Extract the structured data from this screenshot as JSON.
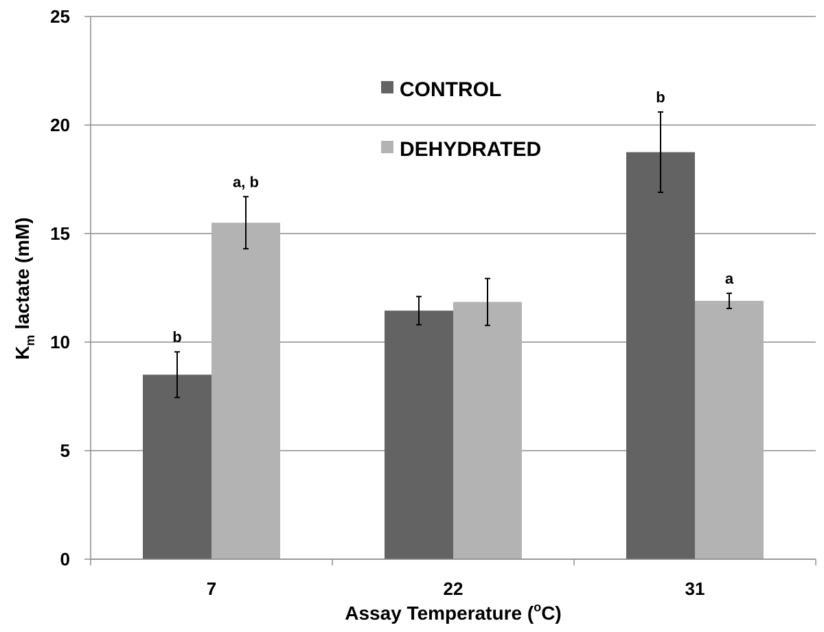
{
  "chart_data": {
    "type": "bar",
    "categories": [
      "7",
      "22",
      "31"
    ],
    "series": [
      {
        "name": "CONTROL",
        "color": "#636363",
        "values": [
          8.5,
          11.45,
          18.75
        ],
        "errors": [
          1.05,
          0.65,
          1.85
        ],
        "annotations": [
          "b",
          "",
          "b"
        ]
      },
      {
        "name": "DEHYDRATED",
        "color": "#b3b3b3",
        "values": [
          15.5,
          11.85,
          11.9
        ],
        "errors": [
          1.2,
          1.08,
          0.35
        ],
        "annotations": [
          "a, b",
          "",
          "a"
        ]
      }
    ],
    "xlabel": {
      "main": "Assay Temperature (",
      "sup": "o",
      "end": "C)"
    },
    "ylabel": {
      "main": "K",
      "sub": "m",
      "end": " lactate (mM)"
    },
    "yticks": [
      "0",
      "5",
      "10",
      "15",
      "20",
      "25"
    ],
    "ylim": [
      0,
      25
    ],
    "grid": true,
    "legend_position": "top-center"
  }
}
